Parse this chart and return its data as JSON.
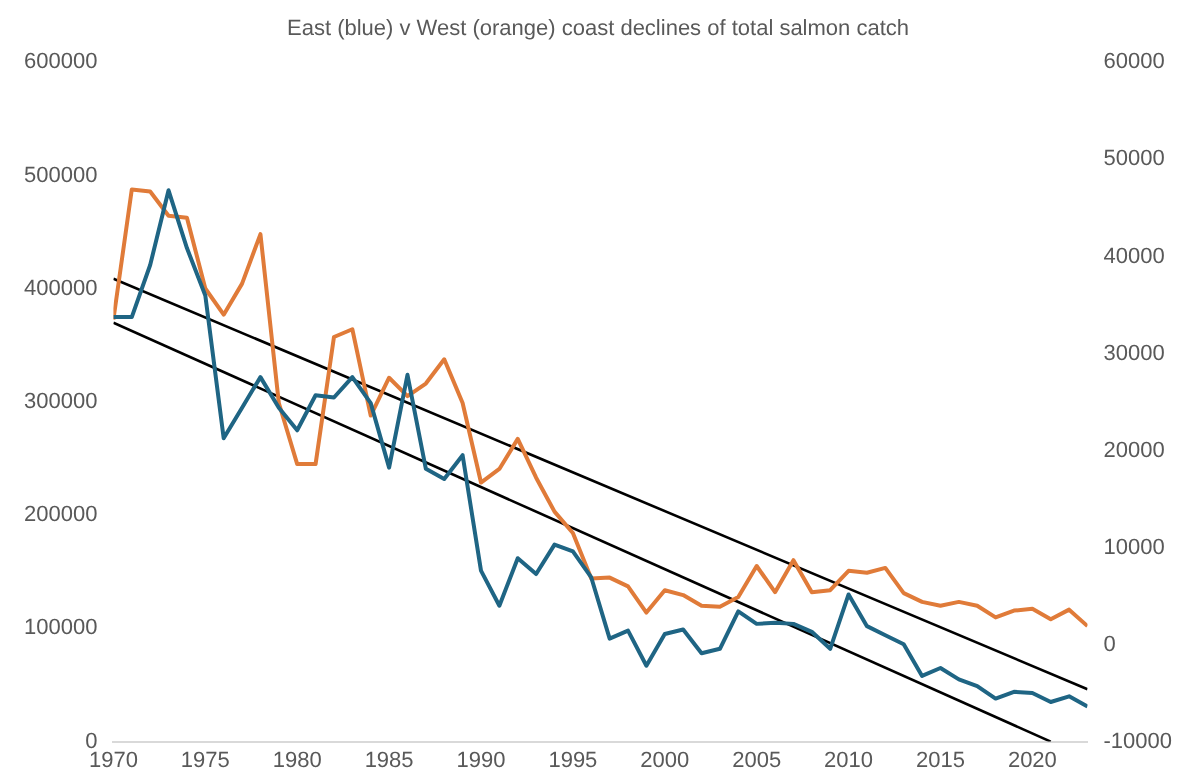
{
  "chart_data": {
    "type": "line",
    "title": "East (blue) v West (orange) coast declines of total salmon catch",
    "x": [
      1970,
      1971,
      1972,
      1973,
      1974,
      1975,
      1976,
      1977,
      1978,
      1979,
      1980,
      1981,
      1982,
      1983,
      1984,
      1985,
      1986,
      1987,
      1988,
      1989,
      1990,
      1991,
      1992,
      1993,
      1994,
      1995,
      1996,
      1997,
      1998,
      1999,
      2000,
      2001,
      2002,
      2003,
      2004,
      2005,
      2006,
      2007,
      2008,
      2009,
      2010,
      2011,
      2012,
      2013,
      2014,
      2015,
      2016,
      2017,
      2018,
      2019,
      2020,
      2021,
      2022,
      2023
    ],
    "series": [
      {
        "color": "#1f6584",
        "values": [
          375000,
          375000,
          421000,
          487000,
          436000,
          394000,
          268000,
          295000,
          322000,
          295000,
          275000,
          306000,
          304000,
          322000,
          299000,
          242000,
          324000,
          241000,
          232000,
          253000,
          151000,
          120000,
          162000,
          148000,
          174000,
          168000,
          145000,
          91000,
          98000,
          67000,
          95000,
          99000,
          78000,
          82000,
          115000,
          104000,
          105000,
          104000,
          97000,
          82000,
          130000,
          102000,
          94000,
          86000,
          58000,
          65000,
          55000,
          49000,
          38000,
          44000,
          43000,
          35000,
          40000,
          31000
        ]
      },
      {
        "color": "#e07b39",
        "axis": "y2",
        "values": [
          33500,
          46900,
          46700,
          44200,
          44000,
          36700,
          34000,
          37200,
          42300,
          24900,
          18600,
          18600,
          31700,
          32500,
          23600,
          27500,
          25600,
          26900,
          29400,
          24900,
          16700,
          18100,
          21200,
          17200,
          13700,
          11500,
          6800,
          6900,
          6000,
          3300,
          5600,
          5100,
          4000,
          3900,
          4900,
          8100,
          5400,
          8700,
          5400,
          5600,
          7600,
          7400,
          7900,
          5300,
          4400,
          4000,
          4400,
          4000,
          2800,
          3500,
          3700,
          2600,
          3600,
          1900
        ]
      },
      {
        "type": "line",
        "color": "#000000",
        "x": [
          1970,
          2021
        ],
        "values": [
          370000,
          0
        ]
      },
      {
        "type": "line",
        "color": "#000000",
        "axis": "y2",
        "x": [
          1970,
          2023
        ],
        "values": [
          37700,
          -4600
        ]
      }
    ],
    "xlim": [
      1970,
      2023
    ],
    "xticks": [
      1970,
      1975,
      1980,
      1985,
      1990,
      1995,
      2000,
      2005,
      2010,
      2015,
      2020
    ],
    "ylim": [
      0,
      600000
    ],
    "yticks": [
      0,
      100000,
      200000,
      300000,
      400000,
      500000,
      600000
    ],
    "y2lim": [
      -10000,
      60000
    ],
    "y2ticks": [
      -10000,
      0,
      10000,
      20000,
      30000,
      40000,
      50000,
      60000
    ],
    "grid": false,
    "legend": false,
    "marker": "none",
    "line_style": "solid"
  }
}
